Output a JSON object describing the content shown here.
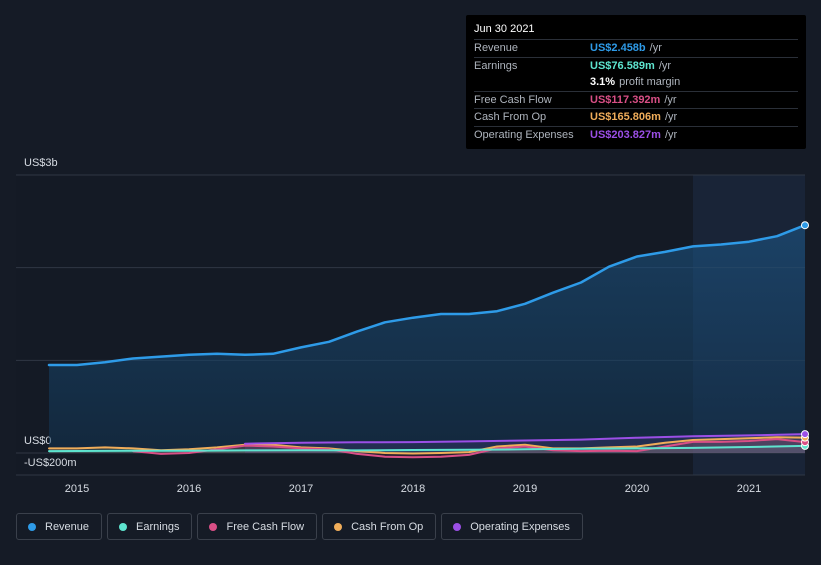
{
  "tooltip": {
    "date": "Jun 30 2021",
    "rows": [
      {
        "label": "Revenue",
        "value": "US$2.458b",
        "unit": "/yr",
        "color": "#2e9be8"
      },
      {
        "label": "Earnings",
        "value": "US$76.589m",
        "unit": "/yr",
        "color": "#5ee4cf"
      },
      {
        "label": "",
        "value": "3.1%",
        "unit": "profit margin",
        "color": "#ffffff"
      },
      {
        "label": "Free Cash Flow",
        "value": "US$117.392m",
        "unit": "/yr",
        "color": "#d94f86"
      },
      {
        "label": "Cash From Op",
        "value": "US$165.806m",
        "unit": "/yr",
        "color": "#f0ad5a"
      },
      {
        "label": "Operating Expenses",
        "value": "US$203.827m",
        "unit": "/yr",
        "color": "#9b4fe6"
      }
    ]
  },
  "legend": [
    {
      "label": "Revenue",
      "color": "#2e9be8"
    },
    {
      "label": "Earnings",
      "color": "#5ee4cf"
    },
    {
      "label": "Free Cash Flow",
      "color": "#d94f86"
    },
    {
      "label": "Cash From Op",
      "color": "#f0ad5a"
    },
    {
      "label": "Operating Expenses",
      "color": "#9b4fe6"
    }
  ],
  "chart_data": {
    "type": "area",
    "y_tick_labels": [
      "US$3b",
      "US$0",
      "-US$200m"
    ],
    "ylim": [
      -200,
      3000
    ],
    "y_unit": "US$ millions",
    "x_tick_labels": [
      "2015",
      "2016",
      "2017",
      "2018",
      "2019",
      "2020",
      "2021"
    ],
    "x_ticks": [
      2015.0,
      2016.0,
      2017.0,
      2018.0,
      2019.0,
      2020.0,
      2021.0
    ],
    "xlim": [
      2014.65,
      2021.5
    ],
    "highlight_start": 2020.5,
    "series": [
      {
        "name": "Revenue",
        "color": "#2e9be8",
        "x": [
          2014.75,
          2015.0,
          2015.25,
          2015.5,
          2015.75,
          2016.0,
          2016.25,
          2016.5,
          2016.75,
          2017.0,
          2017.25,
          2017.5,
          2017.75,
          2018.0,
          2018.25,
          2018.5,
          2018.75,
          2019.0,
          2019.25,
          2019.5,
          2019.75,
          2020.0,
          2020.25,
          2020.5,
          2020.75,
          2021.0,
          2021.25,
          2021.5
        ],
        "y": [
          950,
          950,
          980,
          1020,
          1040,
          1060,
          1070,
          1060,
          1070,
          1140,
          1200,
          1310,
          1410,
          1460,
          1500,
          1500,
          1530,
          1610,
          1730,
          1840,
          2010,
          2120,
          2170,
          2230,
          2250,
          2280,
          2340,
          2458
        ]
      },
      {
        "name": "Earnings",
        "color": "#5ee4cf",
        "x": [
          2014.75,
          2015.0,
          2015.5,
          2016.0,
          2016.5,
          2017.0,
          2017.5,
          2018.0,
          2018.5,
          2019.0,
          2019.5,
          2020.0,
          2020.5,
          2021.0,
          2021.5
        ],
        "y": [
          20,
          22,
          25,
          24,
          28,
          30,
          28,
          32,
          35,
          40,
          45,
          50,
          55,
          65,
          76.6
        ]
      },
      {
        "name": "Free Cash Flow",
        "color": "#d94f86",
        "x": [
          2015.5,
          2015.75,
          2016.0,
          2016.25,
          2016.5,
          2016.75,
          2017.0,
          2017.25,
          2017.5,
          2017.75,
          2018.0,
          2018.25,
          2018.5,
          2018.75,
          2019.0,
          2019.25,
          2019.5,
          2019.75,
          2020.0,
          2020.25,
          2020.5,
          2020.75,
          2021.0,
          2021.25,
          2021.5
        ],
        "y": [
          20,
          -10,
          0,
          40,
          80,
          70,
          50,
          40,
          -10,
          -40,
          -45,
          -40,
          -20,
          50,
          70,
          30,
          20,
          25,
          20,
          70,
          120,
          120,
          130,
          150,
          117.4
        ]
      },
      {
        "name": "Cash From Op",
        "color": "#f0ad5a",
        "x": [
          2014.75,
          2015.0,
          2015.25,
          2015.5,
          2015.75,
          2016.0,
          2016.25,
          2016.5,
          2016.75,
          2017.0,
          2017.25,
          2017.5,
          2017.75,
          2018.0,
          2018.25,
          2018.5,
          2018.75,
          2019.0,
          2019.25,
          2019.5,
          2019.75,
          2020.0,
          2020.25,
          2020.5,
          2020.75,
          2021.0,
          2021.25,
          2021.5
        ],
        "y": [
          50,
          50,
          60,
          50,
          30,
          40,
          60,
          90,
          90,
          60,
          50,
          20,
          0,
          -5,
          0,
          10,
          70,
          90,
          50,
          50,
          60,
          70,
          110,
          140,
          150,
          160,
          170,
          165.8
        ]
      },
      {
        "name": "Operating Expenses",
        "color": "#9b4fe6",
        "x": [
          2016.5,
          2017.0,
          2017.5,
          2018.0,
          2018.5,
          2019.0,
          2019.5,
          2020.0,
          2020.5,
          2021.0,
          2021.5
        ],
        "y": [
          100,
          110,
          115,
          118,
          125,
          135,
          145,
          165,
          180,
          190,
          203.8
        ]
      }
    ]
  }
}
